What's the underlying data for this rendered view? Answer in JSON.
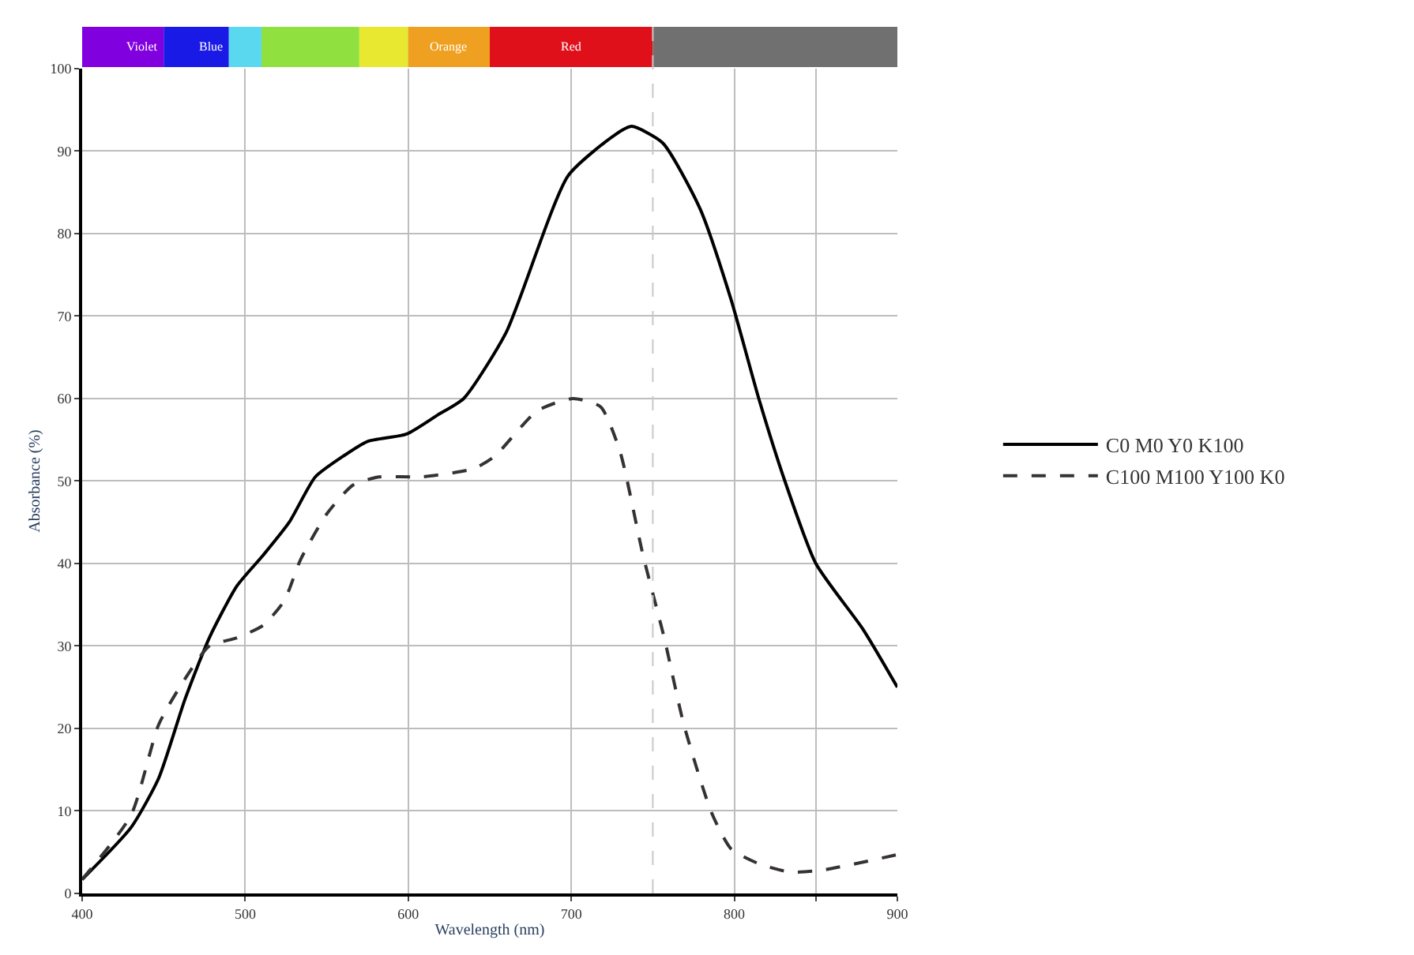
{
  "chart_data": {
    "type": "line",
    "xlabel": "Wavelength (nm)",
    "ylabel": "Absorbance (%)",
    "xlim": [
      400,
      900
    ],
    "xticks": [
      400,
      500,
      600,
      700,
      800,
      {
        "value": 850,
        "label": null
      },
      900
    ],
    "ylim": [
      0,
      100
    ],
    "yticks": [
      0,
      10,
      20,
      30,
      40,
      50,
      60,
      70,
      80,
      90,
      100
    ],
    "grid": true,
    "legend": "right",
    "marker": "none",
    "annotations": [
      "Violet",
      "Blue",
      "Orange",
      "Red"
    ],
    "ref_lines": [
      {
        "axis": "x",
        "value": 750,
        "color": "#c8c8c8",
        "line_style": "dashed"
      }
    ],
    "series": [
      {
        "name": "C0 M0 Y0 K100",
        "color": "#000000",
        "line_style": "solid",
        "x": [
          400,
          430,
          447,
          463,
          478,
          495,
          511,
          527,
          543,
          560,
          575,
          599,
          618,
          634,
          660,
          698,
          727,
          737,
          756,
          779,
          798,
          815,
          831,
          850,
          879,
          900
        ],
        "values": [
          1.7,
          8,
          14,
          23.5,
          31,
          37.3,
          41,
          45,
          50.5,
          53,
          54.8,
          55.7,
          58,
          60,
          68,
          87,
          92,
          93,
          91,
          83,
          72,
          60,
          50,
          40,
          32,
          25
        ]
      },
      {
        "name": "C100 M100 Y100 K0",
        "color": "#363234",
        "line_style": "dashed",
        "x": [
          400,
          430,
          447,
          463,
          478,
          495,
          511,
          524,
          534,
          550,
          566,
          582,
          608,
          640,
          653,
          679,
          701,
          718,
          730,
          744,
          757,
          769,
          786,
          798,
          815,
          834,
          853,
          900
        ],
        "values": [
          1.7,
          9.5,
          20.5,
          26,
          30,
          31,
          32.5,
          35.5,
          40.5,
          46,
          49.5,
          50.5,
          50.5,
          51.5,
          53,
          58.5,
          60,
          59,
          53.5,
          41,
          31,
          20.5,
          9.8,
          5.4,
          3.6,
          2.6,
          2.8,
          4.7
        ]
      }
    ]
  }
}
